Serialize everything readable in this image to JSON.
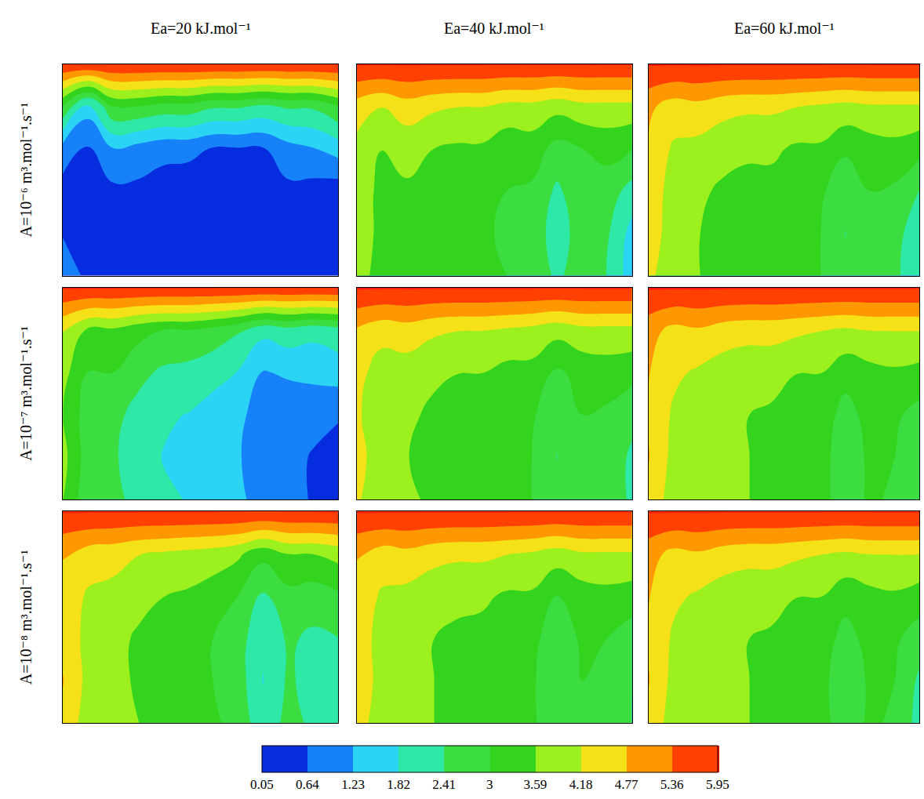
{
  "chart_data": {
    "type": "contour",
    "tick_labels": false,
    "column_titles": [
      "Ea=20 kJ.mol⁻¹",
      "Ea=40 kJ.mol⁻¹",
      "Ea=60 kJ.mol⁻¹"
    ],
    "row_titles": [
      "A=10⁻⁶ m³.mol⁻¹.s⁻¹",
      "A=10⁻⁷ m³.mol⁻¹.s⁻¹",
      "A=10⁻⁸ m³.mol⁻¹.s⁻¹"
    ],
    "colorbar": {
      "range": [
        0.05,
        5.95
      ],
      "ticks": [
        0.05,
        0.64,
        1.23,
        1.82,
        2.41,
        3,
        3.59,
        4.18,
        4.77,
        5.36,
        5.95
      ],
      "colors": [
        "#0000c8",
        "#0a50f0",
        "#1e9bff",
        "#2fe6f0",
        "#2ee89a",
        "#3cdc3c",
        "#2fd21e",
        "#8cf01e",
        "#f0f01e",
        "#ffb400",
        "#ff6400",
        "#ff1400"
      ]
    },
    "cells": [
      [
        [
          [
            6,
            6,
            6,
            6,
            6,
            6,
            6,
            6,
            6,
            6,
            6,
            6
          ],
          [
            3,
            1.5,
            3,
            3,
            2.8,
            2.8,
            2.5,
            2.5,
            2.3,
            2.5,
            2.5,
            3
          ],
          [
            1,
            0.6,
            1.2,
            1,
            0.8,
            0.8,
            0.6,
            0.6,
            0.6,
            1,
            1.2,
            1.5
          ],
          [
            0.4,
            0.3,
            0.5,
            0.5,
            0.4,
            0.3,
            0.3,
            0.3,
            0.3,
            0.5,
            0.4,
            0.3
          ],
          [
            0.6,
            0.2,
            0.3,
            0.3,
            0.3,
            0.2,
            0.2,
            0.2,
            0.2,
            0.3,
            0.2,
            0.1
          ],
          [
            1,
            0.5,
            0.3,
            0.3,
            0.3,
            0.2,
            0.2,
            0.2,
            0.2,
            0.2,
            0.1,
            0.1
          ]
        ],
        [
          [
            6,
            6,
            6,
            6,
            6,
            6,
            6,
            6,
            6,
            6,
            6,
            6
          ],
          [
            4.5,
            4.2,
            4.5,
            4.3,
            4.2,
            4.2,
            4,
            4,
            3.8,
            4,
            4,
            4
          ],
          [
            4,
            3.6,
            3.8,
            3.6,
            3.5,
            3.5,
            3.2,
            3.3,
            2.8,
            3,
            3.2,
            3
          ],
          [
            4,
            3.4,
            3.5,
            3.3,
            3.2,
            3.2,
            3,
            2.9,
            2.3,
            2.8,
            2.7,
            2.2
          ],
          [
            4.2,
            3.3,
            3.4,
            3.3,
            3.2,
            3.1,
            2.9,
            2.8,
            2.1,
            2.7,
            2.5,
            1.6
          ],
          [
            4,
            3.2,
            3.5,
            3.4,
            3.3,
            3.1,
            3,
            2.8,
            2.3,
            2.7,
            2.4,
            1.5
          ]
        ],
        [
          [
            6,
            6,
            6,
            6,
            6,
            6,
            6,
            6,
            6,
            6,
            6,
            6
          ],
          [
            4.9,
            4.5,
            4.6,
            4.4,
            4.3,
            4.3,
            4.2,
            4.1,
            4,
            4.1,
            4.1,
            4.1
          ],
          [
            4.7,
            4.1,
            4,
            3.8,
            3.7,
            3.7,
            3.5,
            3.5,
            3.1,
            3.3,
            3.4,
            3.2
          ],
          [
            4.6,
            3.9,
            3.7,
            3.5,
            3.4,
            3.4,
            3.2,
            3.1,
            2.6,
            3,
            2.9,
            2.4
          ],
          [
            4.6,
            3.8,
            3.6,
            3.5,
            3.4,
            3.3,
            3.1,
            3,
            2.4,
            2.9,
            2.7,
            1.9
          ],
          [
            4.4,
            3.6,
            3.6,
            3.5,
            3.4,
            3.3,
            3.1,
            3,
            2.5,
            2.9,
            2.6,
            1.8
          ]
        ]
      ],
      [
        [
          [
            6,
            6,
            6,
            6,
            6,
            6,
            6,
            6,
            6,
            6,
            6,
            6
          ],
          [
            4.2,
            3.5,
            3.5,
            3.2,
            3,
            3,
            2.8,
            2.5,
            2,
            2.2,
            2,
            2.2
          ],
          [
            3.8,
            3,
            3,
            2.6,
            2.3,
            2.2,
            2,
            1.8,
            1.2,
            1.3,
            1.4,
            1.5
          ],
          [
            3.6,
            2.7,
            2.6,
            2.2,
            1.9,
            1.8,
            1.6,
            1.4,
            0.9,
            0.9,
            0.8,
            0.7
          ],
          [
            3.8,
            2.7,
            2.5,
            2.1,
            1.8,
            1.7,
            1.5,
            1.3,
            0.8,
            0.8,
            0.6,
            0.4
          ],
          [
            3.6,
            2.6,
            2.6,
            2.2,
            1.9,
            1.8,
            1.6,
            1.4,
            0.9,
            0.8,
            0.6,
            0.4
          ]
        ],
        [
          [
            6,
            6,
            6,
            6,
            6,
            6,
            6,
            6,
            6,
            6,
            6,
            6
          ],
          [
            4.7,
            4.4,
            4.5,
            4.3,
            4.2,
            4.2,
            4.1,
            4,
            3.8,
            4,
            4,
            4
          ],
          [
            4.4,
            3.9,
            3.9,
            3.7,
            3.6,
            3.6,
            3.4,
            3.4,
            2.9,
            3.2,
            3.3,
            3.2
          ],
          [
            4.3,
            3.7,
            3.7,
            3.5,
            3.4,
            3.3,
            3.2,
            3.1,
            2.5,
            3,
            2.9,
            2.6
          ],
          [
            4.5,
            3.7,
            3.6,
            3.5,
            3.4,
            3.3,
            3.1,
            3,
            2.4,
            2.9,
            2.8,
            2.3
          ],
          [
            4.3,
            3.6,
            3.7,
            3.5,
            3.4,
            3.3,
            3.2,
            3,
            2.5,
            2.9,
            2.8,
            2.3
          ]
        ],
        [
          [
            6,
            6,
            6,
            6,
            6,
            6,
            6,
            6,
            6,
            6,
            6,
            6
          ],
          [
            5,
            4.6,
            4.7,
            4.5,
            4.4,
            4.4,
            4.3,
            4.2,
            4.1,
            4.2,
            4.2,
            4.2
          ],
          [
            4.8,
            4.3,
            4.1,
            3.9,
            3.8,
            3.8,
            3.6,
            3.6,
            3.2,
            3.4,
            3.5,
            3.4
          ],
          [
            4.7,
            4.1,
            3.9,
            3.7,
            3.6,
            3.5,
            3.4,
            3.3,
            2.8,
            3.2,
            3.1,
            2.8
          ],
          [
            4.8,
            4,
            3.8,
            3.7,
            3.6,
            3.5,
            3.3,
            3.2,
            2.7,
            3.1,
            3,
            2.5
          ],
          [
            4.6,
            3.9,
            3.9,
            3.7,
            3.6,
            3.5,
            3.4,
            3.2,
            2.7,
            3.1,
            2.9,
            2.4
          ]
        ]
      ],
      [
        [
          [
            6,
            6,
            6,
            6,
            6,
            6,
            6,
            6,
            6,
            6,
            6,
            6
          ],
          [
            4.8,
            4.5,
            4.4,
            4.2,
            4.1,
            4,
            3.9,
            3.7,
            3.2,
            3.6,
            3.6,
            3.8
          ],
          [
            4.6,
            4.1,
            4,
            3.8,
            3.6,
            3.5,
            3.3,
            3,
            2.3,
            2.8,
            2.7,
            2.9
          ],
          [
            4.6,
            4,
            3.8,
            3.5,
            3.3,
            3.2,
            3,
            2.7,
            1.9,
            2.5,
            2.3,
            2.4
          ],
          [
            4.8,
            4,
            3.8,
            3.5,
            3.3,
            3.2,
            3,
            2.7,
            1.8,
            2.5,
            2.2,
            2.2
          ],
          [
            4.6,
            3.9,
            3.9,
            3.6,
            3.4,
            3.3,
            3.1,
            2.8,
            2,
            2.6,
            2.3,
            2.2
          ]
        ],
        [
          [
            6,
            6,
            6,
            6,
            6,
            6,
            6,
            6,
            6,
            6,
            6,
            6
          ],
          [
            4.8,
            4.5,
            4.6,
            4.4,
            4.3,
            4.3,
            4.2,
            4.1,
            3.9,
            4.1,
            4.1,
            4.1
          ],
          [
            4.6,
            4.1,
            4,
            3.8,
            3.7,
            3.7,
            3.5,
            3.5,
            3,
            3.3,
            3.4,
            3.3
          ],
          [
            4.6,
            3.9,
            3.8,
            3.6,
            3.5,
            3.4,
            3.3,
            3.2,
            2.6,
            3.1,
            3,
            2.7
          ],
          [
            4.7,
            3.9,
            3.7,
            3.6,
            3.5,
            3.4,
            3.2,
            3.1,
            2.5,
            3,
            2.9,
            2.4
          ],
          [
            4.5,
            3.8,
            3.8,
            3.6,
            3.5,
            3.4,
            3.3,
            3.1,
            2.6,
            3,
            2.9,
            2.4
          ]
        ],
        [
          [
            6,
            6,
            6,
            6,
            6,
            6,
            6,
            6,
            6,
            6,
            6,
            6
          ],
          [
            5,
            4.6,
            4.7,
            4.5,
            4.4,
            4.4,
            4.3,
            4.2,
            4.1,
            4.2,
            4.2,
            4.2
          ],
          [
            4.8,
            4.3,
            4.1,
            3.9,
            3.8,
            3.8,
            3.6,
            3.6,
            3.2,
            3.4,
            3.5,
            3.3
          ],
          [
            4.7,
            4.1,
            3.9,
            3.7,
            3.6,
            3.5,
            3.4,
            3.3,
            2.8,
            3.2,
            3.1,
            2.7
          ],
          [
            4.8,
            4,
            3.8,
            3.7,
            3.6,
            3.5,
            3.3,
            3.2,
            2.6,
            3.1,
            3,
            2.3
          ],
          [
            4.6,
            3.9,
            3.9,
            3.7,
            3.6,
            3.5,
            3.4,
            3.2,
            2.7,
            3.1,
            2.9,
            2.2
          ]
        ]
      ]
    ]
  }
}
